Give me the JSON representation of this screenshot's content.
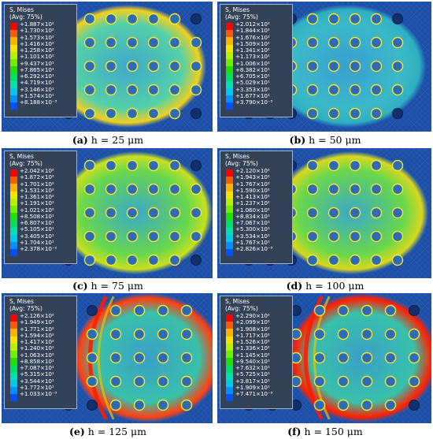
{
  "legend_title": [
    "S, Mises",
    "(Avg: 75%)"
  ],
  "legend_colors": [
    "#ff0000",
    "#ff5a00",
    "#ffb000",
    "#f2e400",
    "#b8f000",
    "#6ef000",
    "#20e000",
    "#00e060",
    "#00e0b0",
    "#00c8e8",
    "#0090ff",
    "#0050ff",
    "#0010e0"
  ],
  "panels": [
    {
      "id": "a",
      "legend_values": [
        "+1.887×10²",
        "+1.730×10²",
        "+1.573×10²",
        "+1.416×10²",
        "+1.258×10²",
        "+1.101×10²",
        "+9.437×10¹",
        "+7.865×10¹",
        "+6.292×10¹",
        "+4.719×10¹",
        "+3.146×10¹",
        "+1.574×10¹",
        "+8.188×10⁻³"
      ],
      "caption_letter": "(a)",
      "caption_text": " h = 25 μm"
    },
    {
      "id": "b",
      "legend_values": [
        "+2.012×10²",
        "+1.844×10²",
        "+1.676×10²",
        "+1.509×10²",
        "+1.341×10²",
        "+1.173×10²",
        "+1.006×10²",
        "+8.382×10¹",
        "+6.705×10¹",
        "+5.029×10¹",
        "+3.353×10¹",
        "+1.677×10¹",
        "+3.790×10⁻³"
      ],
      "caption_letter": "(b)",
      "caption_text": " h = 50 μm"
    },
    {
      "id": "c",
      "legend_values": [
        "+2.042×10²",
        "+1.872×10²",
        "+1.701×10²",
        "+1.531×10²",
        "+1.361×10²",
        "+1.191×10²",
        "+1.021×10²",
        "+8.508×10¹",
        "+6.807×10¹",
        "+5.105×10¹",
        "+3.405×10¹",
        "+1.704×10¹",
        "+2.378×10⁻²"
      ],
      "caption_letter": "(c)",
      "caption_text": " h = 75 μm"
    },
    {
      "id": "d",
      "legend_values": [
        "+2.120×10²",
        "+1.943×10²",
        "+1.767×10²",
        "+1.590×10²",
        "+1.413×10²",
        "+1.237×10²",
        "+1.060×10²",
        "+8.834×10¹",
        "+7.067×10¹",
        "+5.300×10¹",
        "+3.534×10¹",
        "+1.767×10¹",
        "+2.826×10⁻³"
      ],
      "caption_letter": "(d)",
      "caption_text": " h = 100 μm"
    },
    {
      "id": "e",
      "legend_values": [
        "+2.126×10²",
        "+1.949×10²",
        "+1.771×10²",
        "+1.594×10²",
        "+1.417×10²",
        "+1.240×10²",
        "+1.063×10²",
        "+8.858×10¹",
        "+7.087×10¹",
        "+5.315×10¹",
        "+3.544×10¹",
        "+1.772×10¹",
        "+1.033×10⁻³"
      ],
      "caption_letter": "(e)",
      "caption_text": " h = 125 μm"
    },
    {
      "id": "f",
      "legend_values": [
        "+2.290×10²",
        "+2.099×10²",
        "+1.908×10²",
        "+1.717×10²",
        "+1.526×10²",
        "+1.336×10²",
        "+1.145×10²",
        "+9.540×10¹",
        "+7.632×10¹",
        "+5.725×10¹",
        "+3.817×10¹",
        "+1.909×10¹",
        "+7.471×10⁻³"
      ],
      "caption_letter": "(f)",
      "caption_text": " h = 150 μm"
    }
  ]
}
